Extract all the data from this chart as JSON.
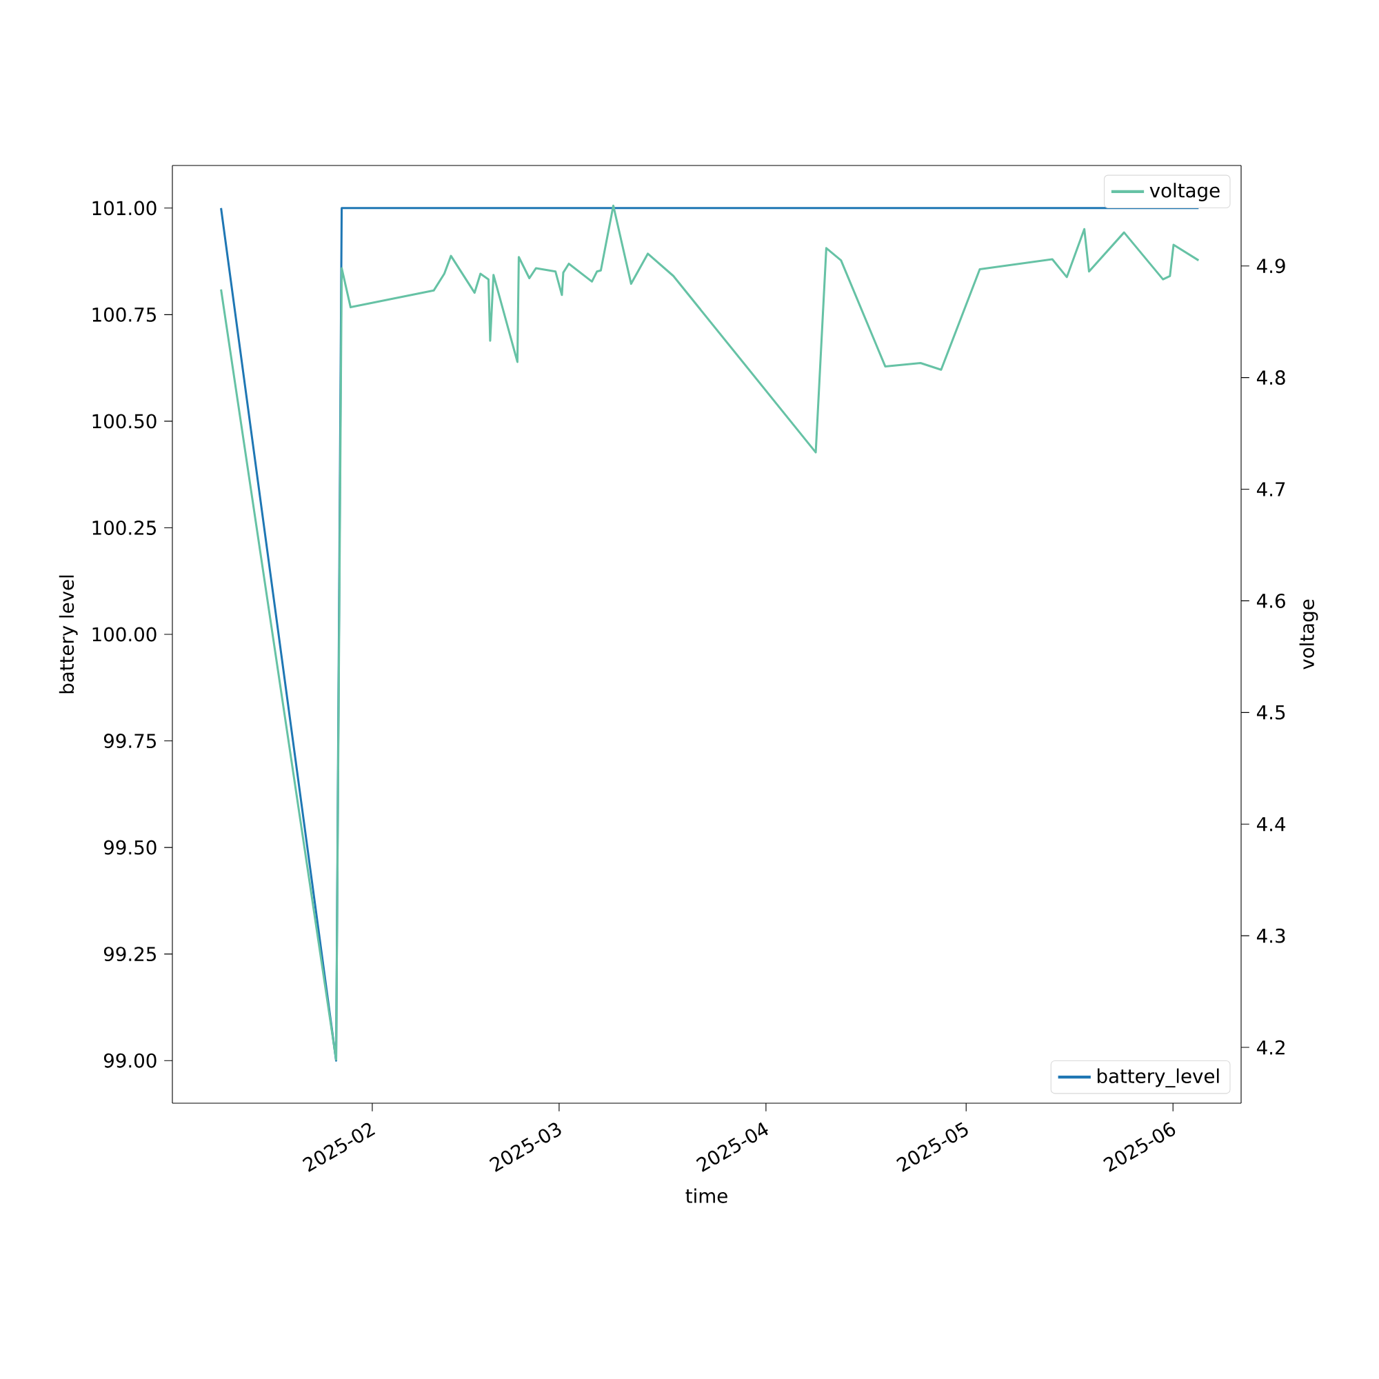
{
  "chart_data": {
    "type": "line",
    "legend": "right",
    "xlabel": "time",
    "ylabel": "battery level",
    "y2label": "voltage",
    "xlim": [
      "2025-01-02T01:00",
      "2025-06-11T05:00"
    ],
    "xticks": [
      "2025-02",
      "2025-03",
      "2025-04",
      "2025-05",
      "2025-06"
    ],
    "ylim": [
      98.9,
      101.1
    ],
    "yticks": [
      {
        "value": 99,
        "label": "99.00"
      },
      {
        "value": 99.25,
        "label": "99.25"
      },
      {
        "value": 99.5,
        "label": "99.50"
      },
      {
        "value": 99.75,
        "label": "99.75"
      },
      {
        "value": 100,
        "label": "100.00"
      },
      {
        "value": 100.25,
        "label": "100.25"
      },
      {
        "value": 100.5,
        "label": "100.50"
      },
      {
        "value": 100.75,
        "label": "100.75"
      },
      {
        "value": 101,
        "label": "101.00"
      }
    ],
    "y2lim": [
      4.15,
      4.99
    ],
    "y2ticks": [
      4.2,
      4.3,
      4.4,
      4.5,
      4.6,
      4.7,
      4.8,
      4.9
    ],
    "series": [
      {
        "name": "battery_level",
        "color": "#1f77b4",
        "x": [
          "2025-01-09T08:00",
          "2025-01-26T14:00",
          "2025-01-27T10:00",
          "2025-06-04T20:00"
        ],
        "values": [
          101,
          99,
          101,
          101
        ]
      },
      {
        "name": "voltage",
        "color": "#66c2a5",
        "axis": "y2",
        "x": [
          "2025-01-09T08:00",
          "2025-01-26T14:00",
          "2025-01-27T10:00",
          "2025-01-28T18:00",
          "2025-02-10T05:00",
          "2025-02-11T19:00",
          "2025-02-12T19:00",
          "2025-02-16T08:00",
          "2025-02-17T05:00",
          "2025-02-18T10:00",
          "2025-02-18T16:00",
          "2025-02-19T04:00",
          "2025-02-22T18:00",
          "2025-02-22T23:00",
          "2025-02-24T13:00",
          "2025-02-25T13:00",
          "2025-02-28T11:00",
          "2025-03-01T10:00",
          "2025-03-01T15:00",
          "2025-03-02T11:00",
          "2025-03-05T22:00",
          "2025-03-06T16:00",
          "2025-03-07T06:00",
          "2025-03-09T03:00",
          "2025-03-11T19:00",
          "2025-03-14T07:00",
          "2025-03-18T03:00",
          "2025-04-08T11:00",
          "2025-04-10T01:00",
          "2025-04-12T06:00",
          "2025-04-18T21:00",
          "2025-04-24T04:00",
          "2025-04-27T06:00",
          "2025-05-03T01:00",
          "2025-05-13T22:00",
          "2025-05-16T02:00",
          "2025-05-18T17:00",
          "2025-05-19T10:00",
          "2025-05-24T16:00",
          "2025-05-30T12:00",
          "2025-05-31T13:00",
          "2025-06-01T02:00",
          "2025-06-04T20:00"
        ],
        "values": [
          4.879,
          4.189,
          4.898,
          4.863,
          4.878,
          4.893,
          4.909,
          4.876,
          4.893,
          4.888,
          4.833,
          4.892,
          4.814,
          4.908,
          4.889,
          4.898,
          4.895,
          4.874,
          4.894,
          4.902,
          4.886,
          4.895,
          4.896,
          4.954,
          4.884,
          4.911,
          4.891,
          4.733,
          4.916,
          4.905,
          4.81,
          4.813,
          4.807,
          4.897,
          4.906,
          4.89,
          4.933,
          4.895,
          4.93,
          4.888,
          4.891,
          4.919,
          4.905
        ]
      }
    ]
  }
}
